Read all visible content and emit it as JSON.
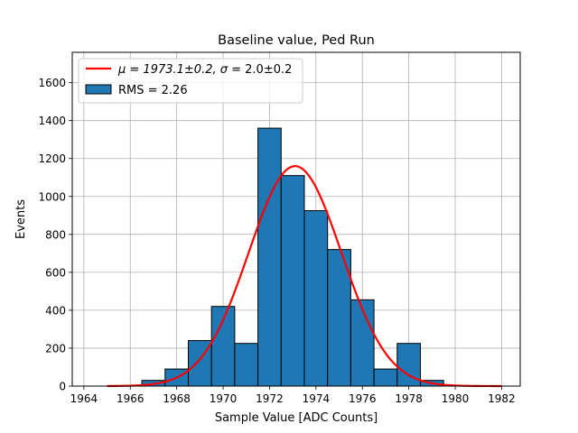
{
  "chart_data": {
    "type": "bar",
    "title": "Baseline value, Ped Run",
    "xlabel": "Sample Value [ADC Counts]",
    "ylabel": "Events",
    "xlim": [
      1963.5,
      1982.8
    ],
    "ylim": [
      0,
      1760
    ],
    "xticks": [
      1964,
      1966,
      1968,
      1970,
      1972,
      1974,
      1976,
      1978,
      1980,
      1982
    ],
    "yticks": [
      0,
      200,
      400,
      600,
      800,
      1000,
      1200,
      1400,
      1600
    ],
    "grid": true,
    "legend_position": "top-left",
    "histogram": {
      "name": "RMS = 2.26",
      "color": "#1f77b4",
      "edge_color": "#000000",
      "bins": [
        {
          "x0": 1966.5,
          "x1": 1967.5,
          "value": 30
        },
        {
          "x0": 1967.5,
          "x1": 1968.5,
          "value": 90
        },
        {
          "x0": 1968.5,
          "x1": 1969.5,
          "value": 240
        },
        {
          "x0": 1969.5,
          "x1": 1970.5,
          "value": 420
        },
        {
          "x0": 1970.5,
          "x1": 1971.5,
          "value": 225
        },
        {
          "x0": 1971.5,
          "x1": 1972.5,
          "value": 1360
        },
        {
          "x0": 1972.5,
          "x1": 1973.5,
          "value": 1110
        },
        {
          "x0": 1973.5,
          "x1": 1974.5,
          "value": 925
        },
        {
          "x0": 1974.5,
          "x1": 1975.5,
          "value": 720
        },
        {
          "x0": 1975.5,
          "x1": 1976.5,
          "value": 455
        },
        {
          "x0": 1976.5,
          "x1": 1977.5,
          "value": 90
        },
        {
          "x0": 1977.5,
          "x1": 1978.5,
          "value": 225
        },
        {
          "x0": 1978.5,
          "x1": 1979.5,
          "value": 30
        }
      ]
    },
    "fit": {
      "label_prefix": "μ = 1973.1±0.2, ",
      "label_sigma": "σ",
      "label_suffix": " = 2.0±0.2",
      "color": "#ff0000",
      "mu": 1973.1,
      "sigma": 2.0,
      "amplitude": 1160,
      "x_range": [
        1965,
        1982
      ]
    }
  }
}
